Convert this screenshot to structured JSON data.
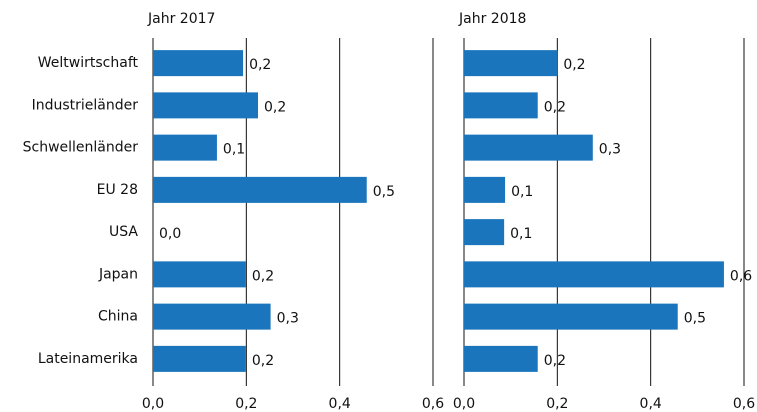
{
  "chart_data": [
    {
      "type": "barh",
      "title": "Jahr 2017",
      "categories": [
        "Weltwirtschaft",
        "Industrieländer",
        "Schwellenländer",
        "EU 28",
        "USA",
        "Japan",
        "China",
        "Lateinamerika"
      ],
      "values": [
        0.193,
        0.225,
        0.137,
        0.458,
        0,
        0.199,
        0.252,
        0.199
      ],
      "value_labels": [
        "0,2",
        "0,2",
        "0,1",
        "0,5",
        "0,0",
        "0,2",
        "0,3",
        "0,2"
      ],
      "color": "#1a75bc",
      "xlim": [
        0,
        0.6
      ],
      "xticks": [
        {
          "value": 0,
          "label": "0,0"
        },
        {
          "value": 0.2,
          "label": "0,2"
        },
        {
          "value": 0.4,
          "label": "0,4"
        },
        {
          "value": 0.6,
          "label": "0,6"
        }
      ],
      "grid": true
    },
    {
      "type": "barh",
      "title": "Jahr 2018",
      "values": [
        0.2,
        0.158,
        0.276,
        0.088,
        0.086,
        0.557,
        0.458,
        0.158
      ],
      "value_labels": [
        "0,2",
        "0,2",
        "0,3",
        "0,1",
        "0,1",
        "0,6",
        "0,5",
        "0,2"
      ],
      "color": "#1a75bc",
      "xlim": [
        0,
        0.6
      ],
      "xticks": [
        {
          "value": 0,
          "label": "0,0"
        },
        {
          "value": 0.2,
          "label": "0,2"
        },
        {
          "value": 0.4,
          "label": "0,4"
        },
        {
          "value": 0.6,
          "label": "0,6"
        }
      ],
      "grid": true
    }
  ]
}
